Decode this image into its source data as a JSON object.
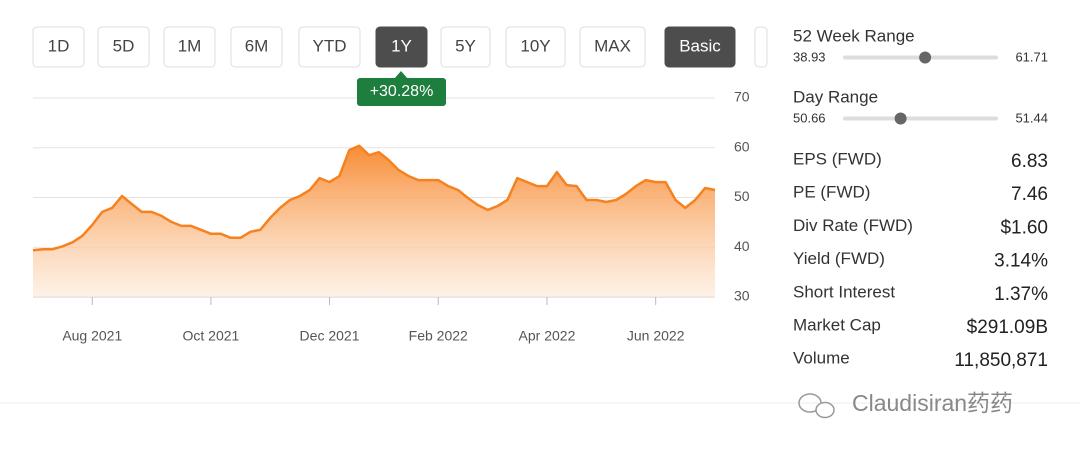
{
  "buttons": [
    {
      "label": "1D",
      "active": false
    },
    {
      "label": "5D",
      "active": false
    },
    {
      "label": "1M",
      "active": false
    },
    {
      "label": "6M",
      "active": false
    },
    {
      "label": "YTD",
      "active": false
    },
    {
      "label": "1Y",
      "active": true
    },
    {
      "label": "5Y",
      "active": false
    },
    {
      "label": "10Y",
      "active": false
    },
    {
      "label": "MAX",
      "active": false
    },
    {
      "label": "Basic",
      "active": true
    }
  ],
  "badge": "+30.28%",
  "chart_data": {
    "type": "area",
    "color": "#f5821f",
    "categories": [
      null,
      null,
      null,
      null,
      null,
      null,
      "Aug 2021",
      null,
      null,
      null,
      null,
      null,
      null,
      null,
      null,
      null,
      null,
      null,
      "Oct 2021",
      null,
      null,
      null,
      null,
      null,
      null,
      null,
      null,
      null,
      null,
      null,
      "Dec 2021",
      null,
      null,
      null,
      null,
      null,
      null,
      null,
      null,
      null,
      null,
      "Feb 2022",
      null,
      null,
      null,
      null,
      null,
      null,
      null,
      null,
      null,
      null,
      "Apr 2022",
      null,
      null,
      null,
      null,
      null,
      null,
      null,
      null,
      null,
      null,
      "Jun 2022",
      null,
      null,
      null,
      null,
      null,
      null
    ],
    "values": [
      39.4,
      39.6,
      39.6,
      40.2,
      41,
      42.3,
      44.5,
      47.1,
      47.9,
      50.3,
      48.7,
      47.1,
      47.1,
      46.3,
      45.1,
      44.3,
      44.3,
      43.5,
      42.7,
      42.7,
      41.9,
      41.9,
      43.1,
      43.5,
      45.9,
      47.9,
      49.5,
      50.3,
      51.5,
      53.9,
      53.1,
      54.3,
      59.5,
      60.4,
      58.5,
      59.1,
      57.5,
      55.5,
      54.3,
      53.5,
      53.5,
      53.5,
      52.3,
      51.5,
      49.9,
      48.5,
      47.5,
      48.3,
      49.5,
      53.9,
      53.1,
      52.3,
      52.3,
      55.1,
      52.5,
      52.3,
      49.5,
      49.5,
      49.1,
      49.5,
      50.7,
      52.3,
      53.5,
      53.1,
      53.1,
      49.5,
      47.9,
      49.5,
      51.9,
      51.5
    ],
    "ylim": [
      30,
      70
    ],
    "yticks": [
      30,
      40,
      50,
      60,
      70
    ],
    "grid": true
  },
  "ranges": [
    {
      "label": "52 Week Range",
      "low": 38.93,
      "high": 61.71,
      "current": 51.0
    },
    {
      "label": "Day Range",
      "low": 50.66,
      "high": 51.44,
      "current": 50.95
    }
  ],
  "stats": [
    {
      "label": "EPS (FWD)",
      "value": "6.83"
    },
    {
      "label": "PE (FWD)",
      "value": "7.46"
    },
    {
      "label": "Div Rate (FWD)",
      "value": "$1.60"
    },
    {
      "label": "Yield (FWD)",
      "value": "3.14%"
    },
    {
      "label": "Short Interest",
      "value": "1.37%"
    },
    {
      "label": "Market Cap",
      "value": "$291.09B"
    },
    {
      "label": "Volume",
      "value": "11,850,871"
    }
  ],
  "watermark": "Claudisiran药药"
}
